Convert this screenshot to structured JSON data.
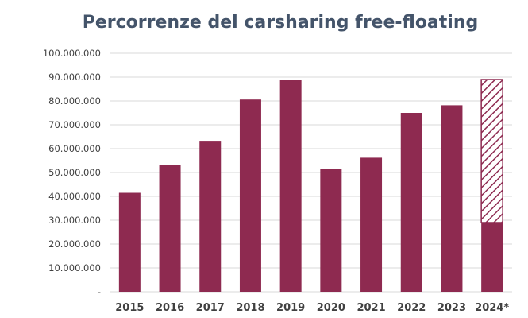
{
  "chart_data": {
    "type": "bar",
    "title": "Percorrenze del carsharing free-floating",
    "xlabel": "",
    "ylabel": "",
    "categories": [
      "2015",
      "2016",
      "2017",
      "2018",
      "2019",
      "2020",
      "2021",
      "2022",
      "2023",
      "2024*"
    ],
    "series": [
      {
        "values": [
          41500000,
          53300000,
          63300000,
          80600000,
          88700000,
          51600000,
          56200000,
          75000000,
          78200000,
          29000000
        ]
      }
    ],
    "estimated_total_2024": 89000000,
    "ylim": [
      0,
      100000000
    ],
    "yticks": [
      0,
      10000000,
      20000000,
      30000000,
      40000000,
      50000000,
      60000000,
      70000000,
      80000000,
      90000000,
      100000000
    ],
    "ytick_labels": [
      "-",
      "10.000.000",
      "20.000.000",
      "30.000.000",
      "40.000.000",
      "50.000.000",
      "60.000.000",
      "70.000.000",
      "80.000.000",
      "90.000.000",
      "100.000.000"
    ],
    "grid": true,
    "legend": "none",
    "colors": {
      "bar": "#8e2a50",
      "grid": "#d9d9d9",
      "title": "#44546a",
      "tick_text": "#404040"
    }
  }
}
